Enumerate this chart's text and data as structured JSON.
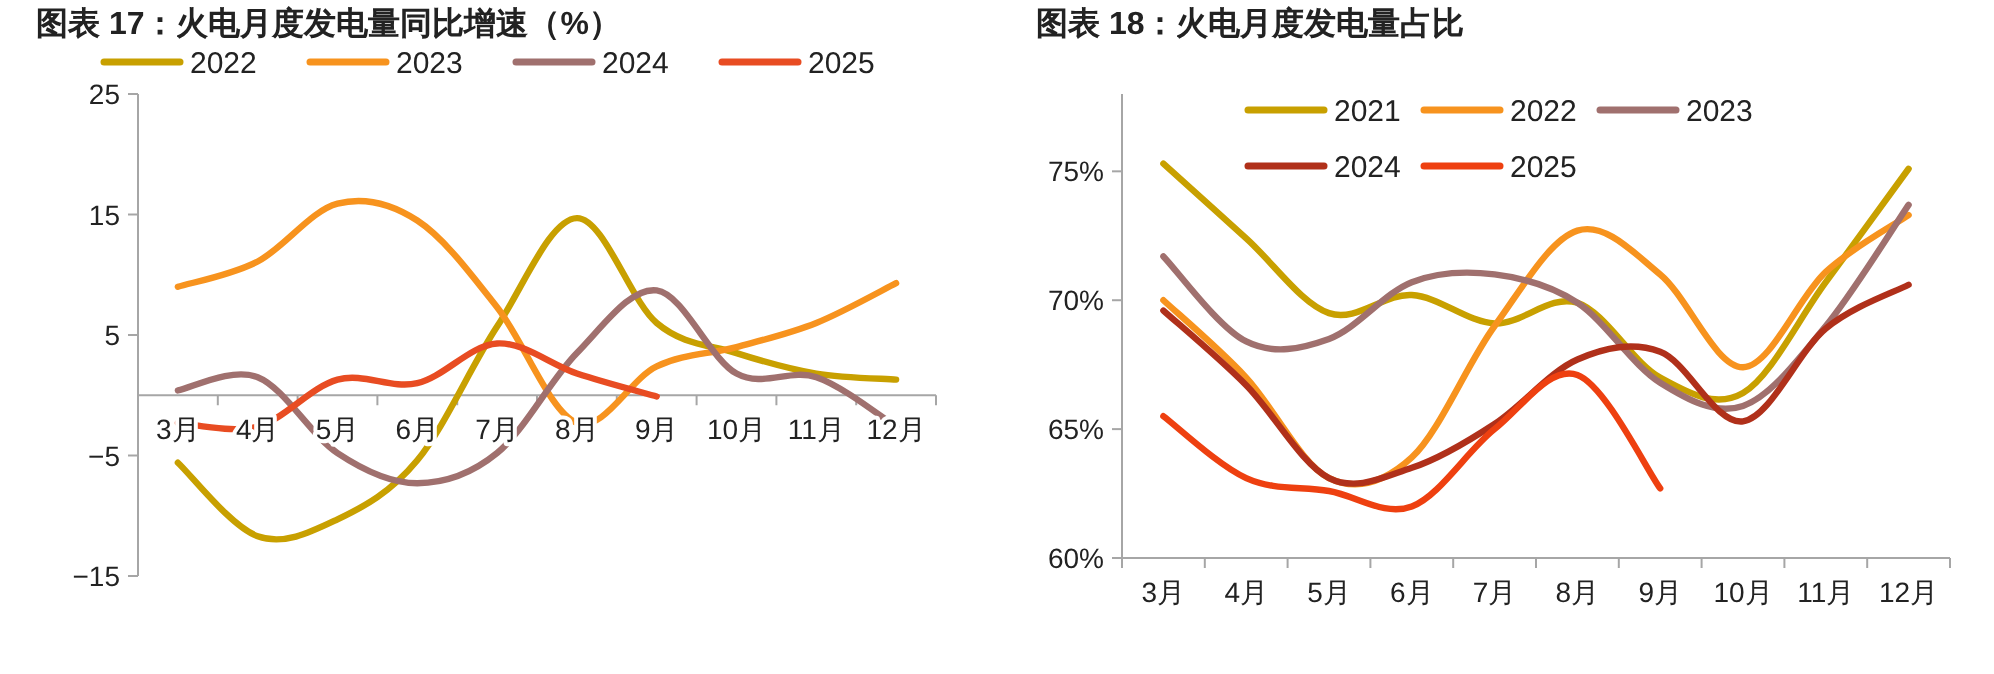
{
  "chart_data": [
    {
      "type": "line",
      "title": "图表 17：火电月度发电量同比增速（%）",
      "categories": [
        "3月",
        "4月",
        "5月",
        "6月",
        "7月",
        "8月",
        "9月",
        "10月",
        "11月",
        "12月"
      ],
      "ylim": [
        -15,
        25
      ],
      "yticks": [
        {
          "value": -15,
          "label": "−15"
        },
        {
          "value": -5,
          "label": "−5"
        },
        5,
        15,
        25
      ],
      "grid": false,
      "legend": "top",
      "marker": "none",
      "line_style": "solid",
      "series": [
        {
          "name": "2022",
          "color": "#c8a000",
          "values": [
            -5.6,
            -11.7,
            -10.3,
            -5.4,
            5.7,
            14.7,
            6.0,
            3.5,
            1.8,
            1.3
          ]
        },
        {
          "name": "2023",
          "color": "#f7931e",
          "values": [
            9.0,
            11.1,
            15.9,
            14.5,
            7.3,
            -2.3,
            2.4,
            4.0,
            6.0,
            9.3
          ]
        },
        {
          "name": "2024",
          "color": "#a0706e",
          "values": [
            0.4,
            1.5,
            -4.8,
            -7.3,
            -4.8,
            3.5,
            8.7,
            1.8,
            1.5,
            -2.6
          ]
        },
        {
          "name": "2025",
          "color": "#e84c22",
          "values": [
            -2.3,
            -2.6,
            1.3,
            1.0,
            4.3,
            1.8,
            -0.1,
            null,
            null,
            null
          ]
        }
      ]
    },
    {
      "type": "line",
      "title": "图表 18：火电月度发电量占比",
      "categories": [
        "3月",
        "4月",
        "5月",
        "6月",
        "7月",
        "8月",
        "9月",
        "10月",
        "11月",
        "12月"
      ],
      "ylim": [
        60,
        78
      ],
      "yticks": [
        {
          "value": 60,
          "label": "60%"
        },
        {
          "value": 65,
          "label": "65%"
        },
        {
          "value": 70,
          "label": "70%"
        },
        {
          "value": 75,
          "label": "75%"
        }
      ],
      "grid": false,
      "legend": "top",
      "marker": "none",
      "line_style": "solid",
      "series": [
        {
          "name": "2021",
          "color": "#c8a000",
          "values": [
            75.3,
            72.4,
            69.5,
            70.2,
            69.1,
            69.9,
            67.0,
            66.4,
            70.7,
            75.1
          ]
        },
        {
          "name": "2022",
          "color": "#f7931e",
          "values": [
            70.0,
            67.0,
            63.1,
            63.9,
            69.0,
            72.7,
            71.0,
            67.4,
            71.1,
            73.3
          ]
        },
        {
          "name": "2023",
          "color": "#a0706e",
          "values": [
            71.7,
            68.4,
            68.5,
            70.7,
            71.0,
            69.9,
            66.8,
            65.9,
            69.0,
            73.7
          ]
        },
        {
          "name": "2024",
          "color": "#b0301a",
          "values": [
            69.6,
            66.7,
            63.1,
            63.5,
            65.2,
            67.7,
            68.0,
            65.3,
            68.9,
            70.6
          ]
        },
        {
          "name": "2025",
          "color": "#ee4010",
          "values": [
            65.5,
            63.1,
            62.6,
            62.0,
            65.0,
            67.1,
            62.7,
            null,
            null,
            null
          ]
        }
      ]
    }
  ]
}
